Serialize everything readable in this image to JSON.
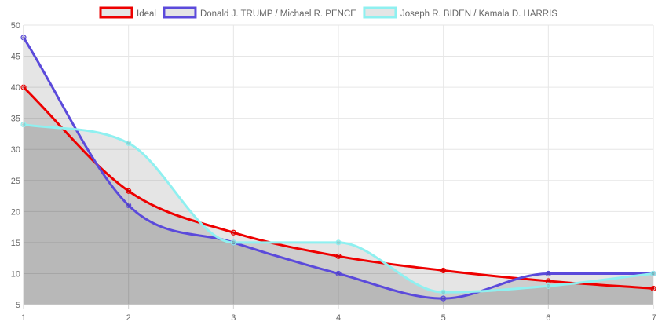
{
  "chart_data": {
    "type": "line",
    "title": "",
    "xlabel": "",
    "ylabel": "",
    "x": [
      1,
      2,
      3,
      4,
      5,
      6,
      7
    ],
    "xlim": [
      1,
      7
    ],
    "ylim": [
      5,
      50
    ],
    "x_ticks": [
      "1",
      "2",
      "3",
      "4",
      "5",
      "6",
      "7"
    ],
    "y_ticks": [
      "5",
      "10",
      "15",
      "20",
      "25",
      "30",
      "35",
      "40",
      "45",
      "50"
    ],
    "grid": true,
    "legend_position": "top",
    "filled_area": true,
    "series": [
      {
        "name": "Ideal",
        "color": "#ee0000",
        "values": [
          40,
          23.3,
          16.6,
          12.8,
          10.5,
          8.8,
          7.6
        ]
      },
      {
        "name": "Donald J. TRUMP / Michael R. PENCE",
        "color": "#5b4adb",
        "values": [
          48,
          21,
          15,
          10,
          6,
          10,
          10
        ]
      },
      {
        "name": "Joseph R. BIDEN / Kamala D. HARRIS",
        "color": "#8ff0f0",
        "values": [
          34,
          31,
          15,
          15,
          7,
          8,
          10
        ]
      }
    ]
  }
}
